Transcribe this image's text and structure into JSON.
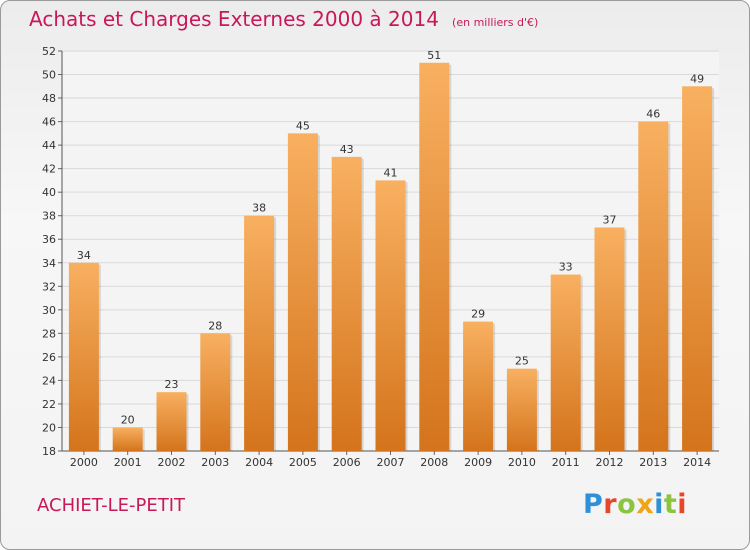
{
  "title": "Achats et Charges Externes 2000 à 2014",
  "unit": "(en milliers d'€)",
  "commune": "ACHIET-LE-PETIT",
  "logo": {
    "text": "Proxiti",
    "letter_colors": [
      "#2f8fd8",
      "#e8462b",
      "#8bc53f",
      "#f0a418",
      "#2f8fd8",
      "#8bc53f",
      "#e8462b"
    ]
  },
  "colors": {
    "bar_light": "#f8b060",
    "bar_dark": "#d4741c",
    "text_accent": "#c8185a"
  },
  "chart_data": {
    "type": "bar",
    "categories": [
      "2000",
      "2001",
      "2002",
      "2003",
      "2004",
      "2005",
      "2006",
      "2007",
      "2008",
      "2009",
      "2010",
      "2011",
      "2012",
      "2013",
      "2014"
    ],
    "values": [
      34,
      20,
      23,
      28,
      38,
      45,
      43,
      41,
      51,
      29,
      25,
      33,
      37,
      46,
      49
    ],
    "ylim": [
      18,
      52
    ],
    "yticks": [
      18,
      20,
      22,
      24,
      26,
      28,
      30,
      32,
      34,
      36,
      38,
      40,
      42,
      44,
      46,
      48,
      50,
      52
    ],
    "grid": true
  }
}
